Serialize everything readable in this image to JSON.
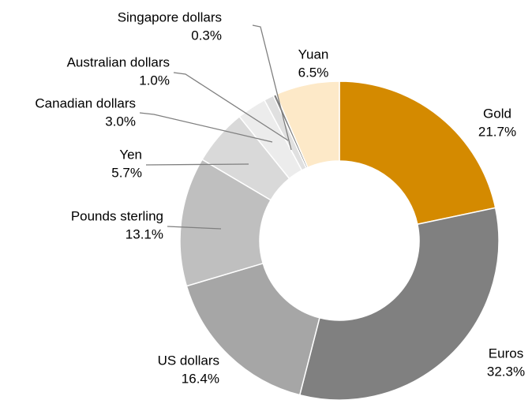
{
  "chart_data": {
    "type": "donut",
    "categories": [
      "Gold",
      "Euros",
      "US dollars",
      "Pounds sterling",
      "Yen",
      "Canadian dollars",
      "Australian dollars",
      "Singapore dollars",
      "Yuan"
    ],
    "values": [
      21.7,
      32.3,
      16.4,
      13.1,
      5.7,
      3.0,
      1.0,
      0.3,
      6.5
    ],
    "value_labels": [
      "21.7%",
      "32.3%",
      "16.4%",
      "13.1%",
      "5.7%",
      "3.0%",
      "1.0%",
      "0.3%",
      "6.5%"
    ],
    "colors": [
      "#d48a00",
      "#808080",
      "#a6a6a6",
      "#bfbfbf",
      "#d9d9d9",
      "#ececec",
      "#e0e0e0",
      "#7f7f7f",
      "#fde9c8"
    ]
  }
}
